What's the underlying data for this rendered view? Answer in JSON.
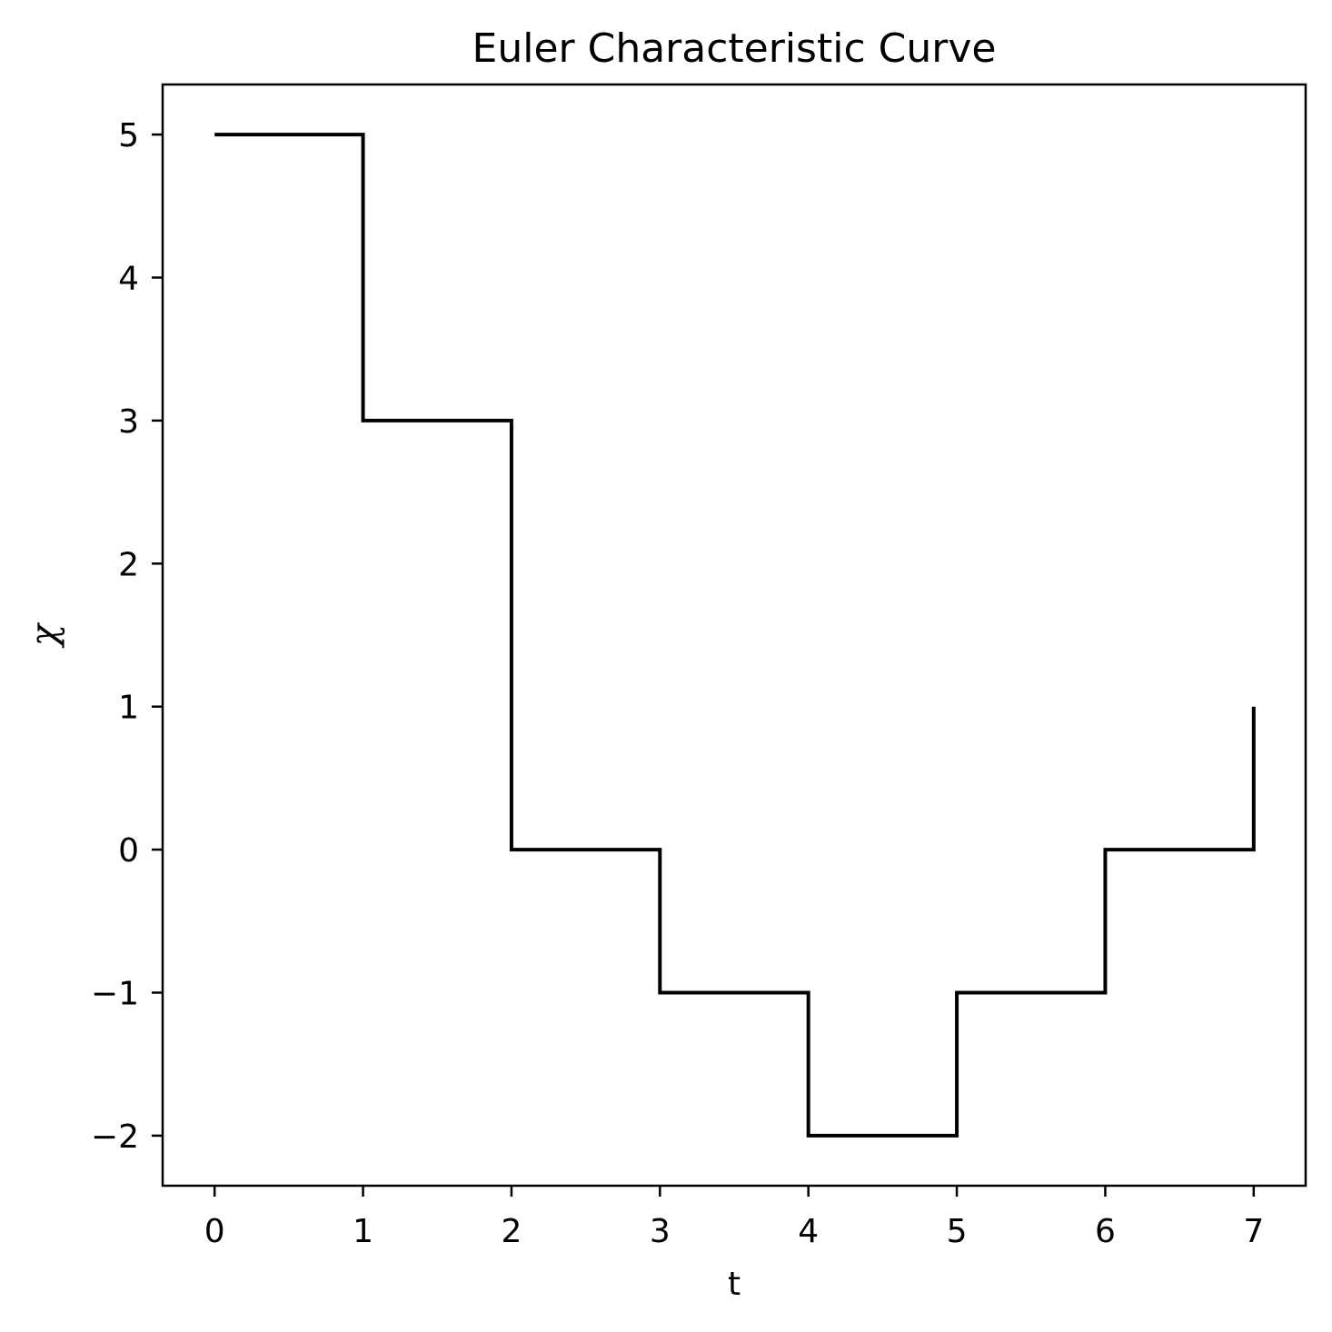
{
  "chart_data": {
    "type": "line",
    "title": "Euler Characteristic Curve",
    "xlabel": "t",
    "ylabel": "χ",
    "step": "post",
    "x": [
      0,
      1,
      2,
      3,
      4,
      5,
      6,
      7
    ],
    "series": [
      {
        "values": [
          5,
          3,
          0,
          -1,
          -2,
          -1,
          0,
          1
        ],
        "color": "#000000"
      }
    ],
    "xlim": [
      -0.35,
      7.35
    ],
    "ylim": [
      -2.35,
      5.35
    ],
    "xticks": [
      0,
      1,
      2,
      3,
      4,
      5,
      6,
      7
    ],
    "yticks": [
      -2,
      -1,
      0,
      1,
      2,
      3,
      4,
      5
    ],
    "xtick_labels": [
      "0",
      "1",
      "2",
      "3",
      "4",
      "5",
      "6",
      "7"
    ],
    "ytick_labels": [
      "−2",
      "−1",
      "0",
      "1",
      "2",
      "3",
      "4",
      "5"
    ],
    "grid": false,
    "legend": "none"
  }
}
